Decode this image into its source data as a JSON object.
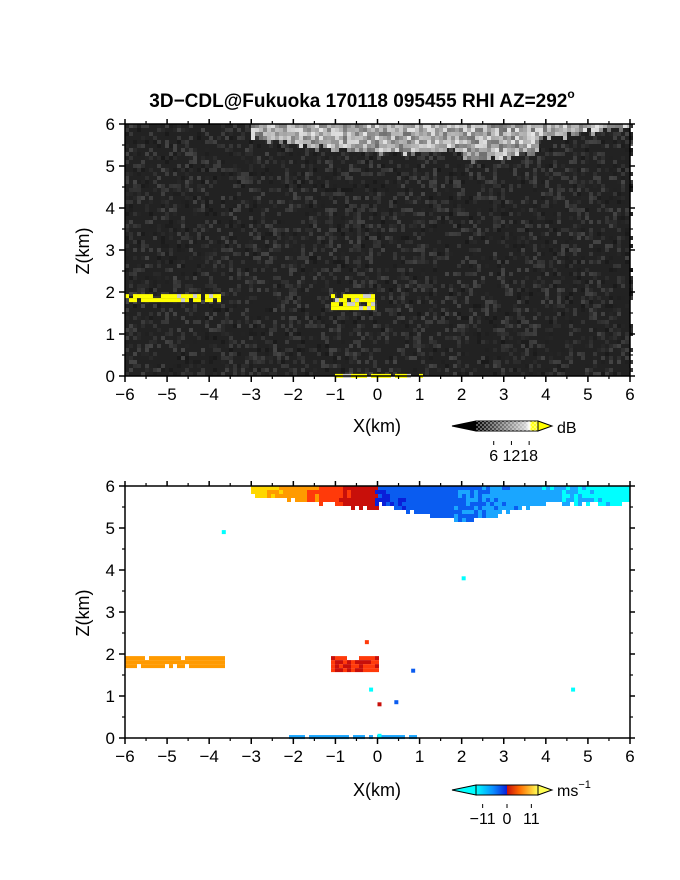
{
  "figure": {
    "title_main": "3D−CDL@Fukuoka 170118 095455 RHI AZ=292",
    "title_sup": "o"
  },
  "chart_data": [
    {
      "type": "heatmap",
      "panel": "top",
      "variable": "reflectivity",
      "xlabel": "X(km)",
      "ylabel": "Z(km)",
      "xlim": [
        -6,
        6
      ],
      "ylim": [
        0,
        6
      ],
      "xticks": [
        "−6",
        "−5",
        "−4",
        "−3",
        "−2",
        "−1",
        "0",
        "1",
        "2",
        "3",
        "4",
        "5",
        "6"
      ],
      "yticks": [
        "0",
        "1",
        "2",
        "3",
        "4",
        "5",
        "6"
      ],
      "colorbar": {
        "unit": "dB",
        "unit_sup": "",
        "ticks": [
          {
            "v": 6,
            "t": "6"
          },
          {
            "v": 12,
            "t": "12"
          },
          {
            "v": 18,
            "t": "18"
          }
        ],
        "range": [
          0,
          21
        ]
      },
      "features": [
        {
          "x": [
            -6.0,
            -3.8
          ],
          "z": [
            1.78,
            1.95
          ],
          "value_db": 21
        },
        {
          "x": [
            -1.1,
            -0.1
          ],
          "z": [
            1.62,
            1.95
          ],
          "value_db": 21
        },
        {
          "x": [
            -1.0,
            1.0
          ],
          "z": [
            0.0,
            0.05
          ],
          "value_db": 20
        },
        {
          "x": [
            -3.0,
            6.0
          ],
          "z": [
            5.1,
            6.0
          ],
          "value_db": 12
        }
      ]
    },
    {
      "type": "heatmap",
      "panel": "bottom",
      "variable": "doppler velocity",
      "xlabel": "X(km)",
      "ylabel": "Z(km)",
      "xlim": [
        -6,
        6
      ],
      "ylim": [
        0,
        6
      ],
      "xticks": [
        "−6",
        "−5",
        "−4",
        "−3",
        "−2",
        "−1",
        "0",
        "1",
        "2",
        "3",
        "4",
        "5",
        "6"
      ],
      "yticks": [
        "0",
        "1",
        "2",
        "3",
        "4",
        "5",
        "6"
      ],
      "colorbar": {
        "unit": "ms",
        "unit_sup": "−1",
        "ticks": [
          {
            "v": -11,
            "t": "−11"
          },
          {
            "v": 0,
            "t": "0"
          },
          {
            "v": 11,
            "t": "11"
          }
        ],
        "range": [
          -14,
          14
        ]
      },
      "features": [
        {
          "x": [
            -6.0,
            -3.7
          ],
          "z": [
            1.7,
            1.95
          ],
          "value_ms": 8
        },
        {
          "x": [
            -1.1,
            -0.05
          ],
          "z": [
            1.6,
            1.95
          ],
          "value_ms": 3
        },
        {
          "x": [
            -2.1,
            0.9
          ],
          "z": [
            0.0,
            0.07
          ],
          "value_ms": -9
        },
        {
          "x": [
            -3.0,
            0.0
          ],
          "z": [
            5.5,
            6.0
          ],
          "value_ms": 6
        },
        {
          "x": [
            0.0,
            6.0
          ],
          "z": [
            5.1,
            6.0
          ],
          "value_ms": -8
        }
      ]
    }
  ]
}
